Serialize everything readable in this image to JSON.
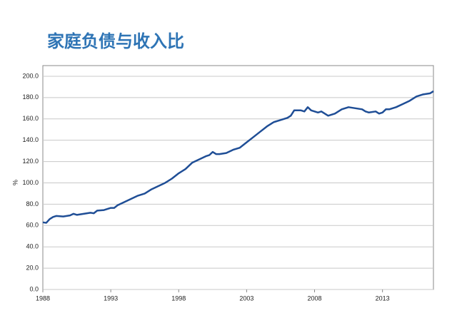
{
  "chart_data": {
    "type": "line",
    "title": "家庭负债与收入比",
    "ylabel": "%",
    "x": [
      1988,
      1988.25,
      1988.5,
      1988.75,
      1989,
      1989.5,
      1990,
      1990.25,
      1990.5,
      1991,
      1991.5,
      1991.75,
      1992,
      1992.5,
      1993,
      1993.25,
      1993.5,
      1994,
      1994.5,
      1995,
      1995.5,
      1996,
      1996.5,
      1997,
      1997.5,
      1998,
      1998.5,
      1999,
      1999.5,
      2000,
      2000.25,
      2000.5,
      2000.75,
      2001,
      2001.5,
      2002,
      2002.5,
      2003,
      2003.5,
      2004,
      2004.5,
      2005,
      2005.5,
      2006,
      2006.25,
      2006.5,
      2007,
      2007.25,
      2007.5,
      2007.75,
      2008,
      2008.25,
      2008.5,
      2009,
      2009.5,
      2010,
      2010.5,
      2011,
      2011.5,
      2011.75,
      2012,
      2012.5,
      2012.75,
      2013,
      2013.25,
      2013.5,
      2014,
      2014.5,
      2015,
      2015.5,
      2016,
      2016.5,
      2016.75
    ],
    "series": [
      {
        "color": "#1f4e96",
        "values": [
          63,
          62.5,
          66,
          68,
          69,
          68.5,
          69.5,
          71,
          70,
          71,
          72,
          71.5,
          74,
          74.5,
          76.5,
          76.5,
          79,
          82,
          85,
          88,
          90,
          94,
          97,
          100,
          104,
          109,
          113,
          119,
          122,
          125,
          126,
          129,
          127,
          127,
          128,
          131,
          133,
          138,
          143,
          148,
          153,
          157,
          159,
          161,
          163,
          168,
          168,
          167,
          171,
          168,
          167,
          166,
          167,
          163,
          165,
          169,
          171,
          170,
          169,
          167,
          166,
          167,
          165,
          166,
          169,
          169,
          171,
          174,
          177,
          181,
          183,
          184,
          186
        ]
      }
    ],
    "xlim": [
      1988,
      2016.75
    ],
    "xticks": [
      1988,
      1993,
      1998,
      2003,
      2008,
      2013
    ],
    "ylim": [
      0,
      210
    ],
    "yticks": [
      {
        "value": 0,
        "label": "0.0"
      },
      {
        "value": 20,
        "label": "20.0"
      },
      {
        "value": 40,
        "label": "40.0"
      },
      {
        "value": 60,
        "label": "60.0"
      },
      {
        "value": 80,
        "label": "80.0"
      },
      {
        "value": 100,
        "label": "100.0"
      },
      {
        "value": 120,
        "label": "120.0"
      },
      {
        "value": 140,
        "label": "140.0"
      },
      {
        "value": 160,
        "label": "160.0"
      },
      {
        "value": 180,
        "label": "180.0"
      },
      {
        "value": 200,
        "label": "200.0"
      }
    ],
    "grid": true
  }
}
